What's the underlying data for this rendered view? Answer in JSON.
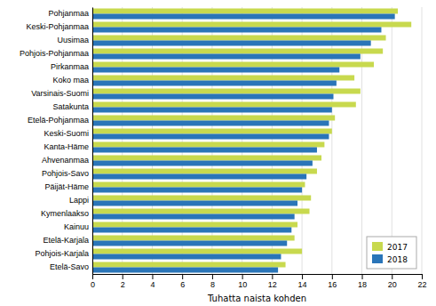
{
  "chart_data": {
    "type": "bar",
    "orientation": "horizontal",
    "categories": [
      "Pohjanmaa",
      "Keski-Pohjanmaa",
      "Uusimaa",
      "Pohjois-Pohjanmaa",
      "Pirkanmaa",
      "Koko maa",
      "Varsinais-Suomi",
      "Satakunta",
      "Etelä-Pohjanmaa",
      "Keski-Suomi",
      "Kanta-Häme",
      "Ahvenanmaa",
      "Pohjois-Savo",
      "Päijät-Häme",
      "Lappi",
      "Kymenlaakso",
      "Kainuu",
      "Etelä-Karjala",
      "Pohjois-Karjala",
      "Etelä-Savo"
    ],
    "series": [
      {
        "name": "2017",
        "color": "#c8d94e",
        "values": [
          20.4,
          21.3,
          19.6,
          19.4,
          18.8,
          17.5,
          17.9,
          17.6,
          16.2,
          16.0,
          15.5,
          15.3,
          15.0,
          14.2,
          14.6,
          14.5,
          13.7,
          13.5,
          14.0,
          12.9
        ]
      },
      {
        "name": "2018",
        "color": "#2a75b8",
        "values": [
          20.2,
          19.3,
          18.6,
          17.9,
          16.5,
          16.3,
          16.1,
          16.0,
          15.8,
          15.8,
          15.0,
          14.7,
          14.3,
          14.0,
          13.7,
          13.5,
          13.3,
          13.0,
          12.6,
          12.4
        ]
      }
    ],
    "xlabel": "Tuhatta naista kohden",
    "xlim": [
      0,
      22
    ],
    "xticks": [
      0,
      2,
      4,
      6,
      8,
      10,
      12,
      14,
      16,
      18,
      20,
      22
    ],
    "grid": true,
    "legend": "lower right"
  }
}
